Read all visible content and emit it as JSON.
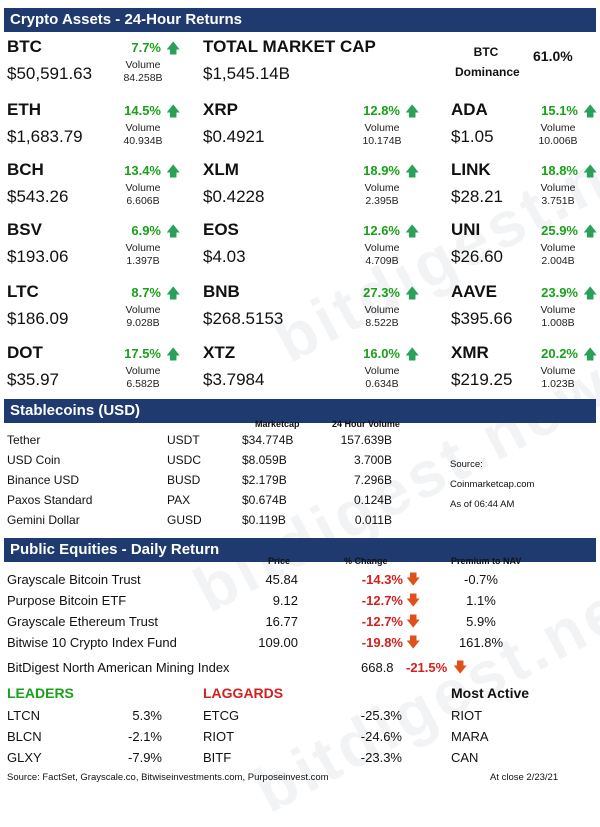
{
  "crypto_header": "Crypto Assets - 24-Hour Returns",
  "total_market_cap": {
    "label": "TOTAL MARKET CAP",
    "value": "$1,545.14B"
  },
  "btc_dominance": {
    "label1": "BTC",
    "label2": "Dominance",
    "value": "61.0%"
  },
  "volume_label": "Volume",
  "coins": [
    {
      "sym": "BTC",
      "chg": "7.7%",
      "price": "$50,591.63",
      "vol": "84.258B"
    },
    {
      "sym": "ETH",
      "chg": "14.5%",
      "price": "$1,683.79",
      "vol": "40.934B"
    },
    {
      "sym": "XRP",
      "chg": "12.8%",
      "price": "$0.4921",
      "vol": "10.174B"
    },
    {
      "sym": "ADA",
      "chg": "15.1%",
      "price": "$1.05",
      "vol": "10.006B"
    },
    {
      "sym": "BCH",
      "chg": "13.4%",
      "price": "$543.26",
      "vol": "6.606B"
    },
    {
      "sym": "XLM",
      "chg": "18.9%",
      "price": "$0.4228",
      "vol": "2.395B"
    },
    {
      "sym": "LINK",
      "chg": "18.8%",
      "price": "$28.21",
      "vol": "3.751B"
    },
    {
      "sym": "BSV",
      "chg": "6.9%",
      "price": "$193.06",
      "vol": "1.397B"
    },
    {
      "sym": "EOS",
      "chg": "12.6%",
      "price": "$4.03",
      "vol": "4.709B"
    },
    {
      "sym": "UNI",
      "chg": "25.9%",
      "price": "$26.60",
      "vol": "2.004B"
    },
    {
      "sym": "LTC",
      "chg": "8.7%",
      "price": "$186.09",
      "vol": "9.028B"
    },
    {
      "sym": "BNB",
      "chg": "27.3%",
      "price": "$268.5153",
      "vol": "8.522B"
    },
    {
      "sym": "AAVE",
      "chg": "23.9%",
      "price": "$395.66",
      "vol": "1.008B"
    },
    {
      "sym": "DOT",
      "chg": "17.5%",
      "price": "$35.97",
      "vol": "6.582B"
    },
    {
      "sym": "XTZ",
      "chg": "16.0%",
      "price": "$3.7984",
      "vol": "0.634B"
    },
    {
      "sym": "XMR",
      "chg": "20.2%",
      "price": "$219.25",
      "vol": "1.023B"
    }
  ],
  "stable_header": "Stablecoins (USD)",
  "stable_cols": {
    "cap": "Marketcap",
    "vol": "24 Hour Volume"
  },
  "stablecoins": [
    {
      "name": "Tether",
      "ticker": "USDT",
      "cap": "$34.774B",
      "vol": "157.639B"
    },
    {
      "name": "USD Coin",
      "ticker": "USDC",
      "cap": "$8.059B",
      "vol": "3.700B"
    },
    {
      "name": "Binance USD",
      "ticker": "BUSD",
      "cap": "$2.179B",
      "vol": "7.296B"
    },
    {
      "name": "Paxos Standard",
      "ticker": "PAX",
      "cap": "$0.674B",
      "vol": "0.124B"
    },
    {
      "name": "Gemini Dollar",
      "ticker": "GUSD",
      "cap": "$0.119B",
      "vol": "0.011B"
    }
  ],
  "source_note": {
    "l1": "Source:",
    "l2": "Coinmarketcap.com",
    "l3": "As of 06:44 AM"
  },
  "equity_header": "Public Equities - Daily Return",
  "equity_cols": {
    "price": "Price",
    "chg": "% Change",
    "nav": "Premium to NAV"
  },
  "equities": [
    {
      "name": "Grayscale Bitcoin Trust",
      "price": "45.84",
      "chg": "-14.3%",
      "nav": "-0.7%"
    },
    {
      "name": "Purpose Bitcoin ETF",
      "price": "9.12",
      "chg": "-12.7%",
      "nav": "1.1%"
    },
    {
      "name": "Grayscale Ethereum Trust",
      "price": "16.77",
      "chg": "-12.7%",
      "nav": "5.9%"
    },
    {
      "name": "Bitwise 10 Crypto Index Fund",
      "price": "109.00",
      "chg": "-19.8%",
      "nav": "161.8%"
    }
  ],
  "mining_index": {
    "name": "BitDigest North American Mining Index",
    "value": "668.8",
    "chg": "-21.5%"
  },
  "leaders": {
    "title": "LEADERS",
    "rows": [
      {
        "sym": "LTCN",
        "val": "5.3%"
      },
      {
        "sym": "BLCN",
        "val": "-2.1%"
      },
      {
        "sym": "GLXY",
        "val": "-7.9%"
      }
    ]
  },
  "laggards": {
    "title": "LAGGARDS",
    "rows": [
      {
        "sym": "ETCG",
        "val": "-25.3%"
      },
      {
        "sym": "RIOT",
        "val": "-24.6%"
      },
      {
        "sym": "BITF",
        "val": "-23.3%"
      }
    ]
  },
  "most_active": {
    "title": "Most Active",
    "rows": [
      "RIOT",
      "MARA",
      "CAN"
    ]
  },
  "footer": {
    "sources": "Source: FactSet, Grayscale.co, Bitwiseinvestments.com, Purposeinvest.com",
    "close": "At close  2/23/21"
  },
  "watermark": "bitdigest.news",
  "colors": {
    "header_bg": "#1e3a6e",
    "positive": "#1aa01a",
    "negative": "#d42020",
    "up_arrow": "#2aa05a",
    "down_arrow": "#e0501a"
  },
  "icons": {
    "up": "up-arrow-icon",
    "down": "down-arrow-icon"
  }
}
